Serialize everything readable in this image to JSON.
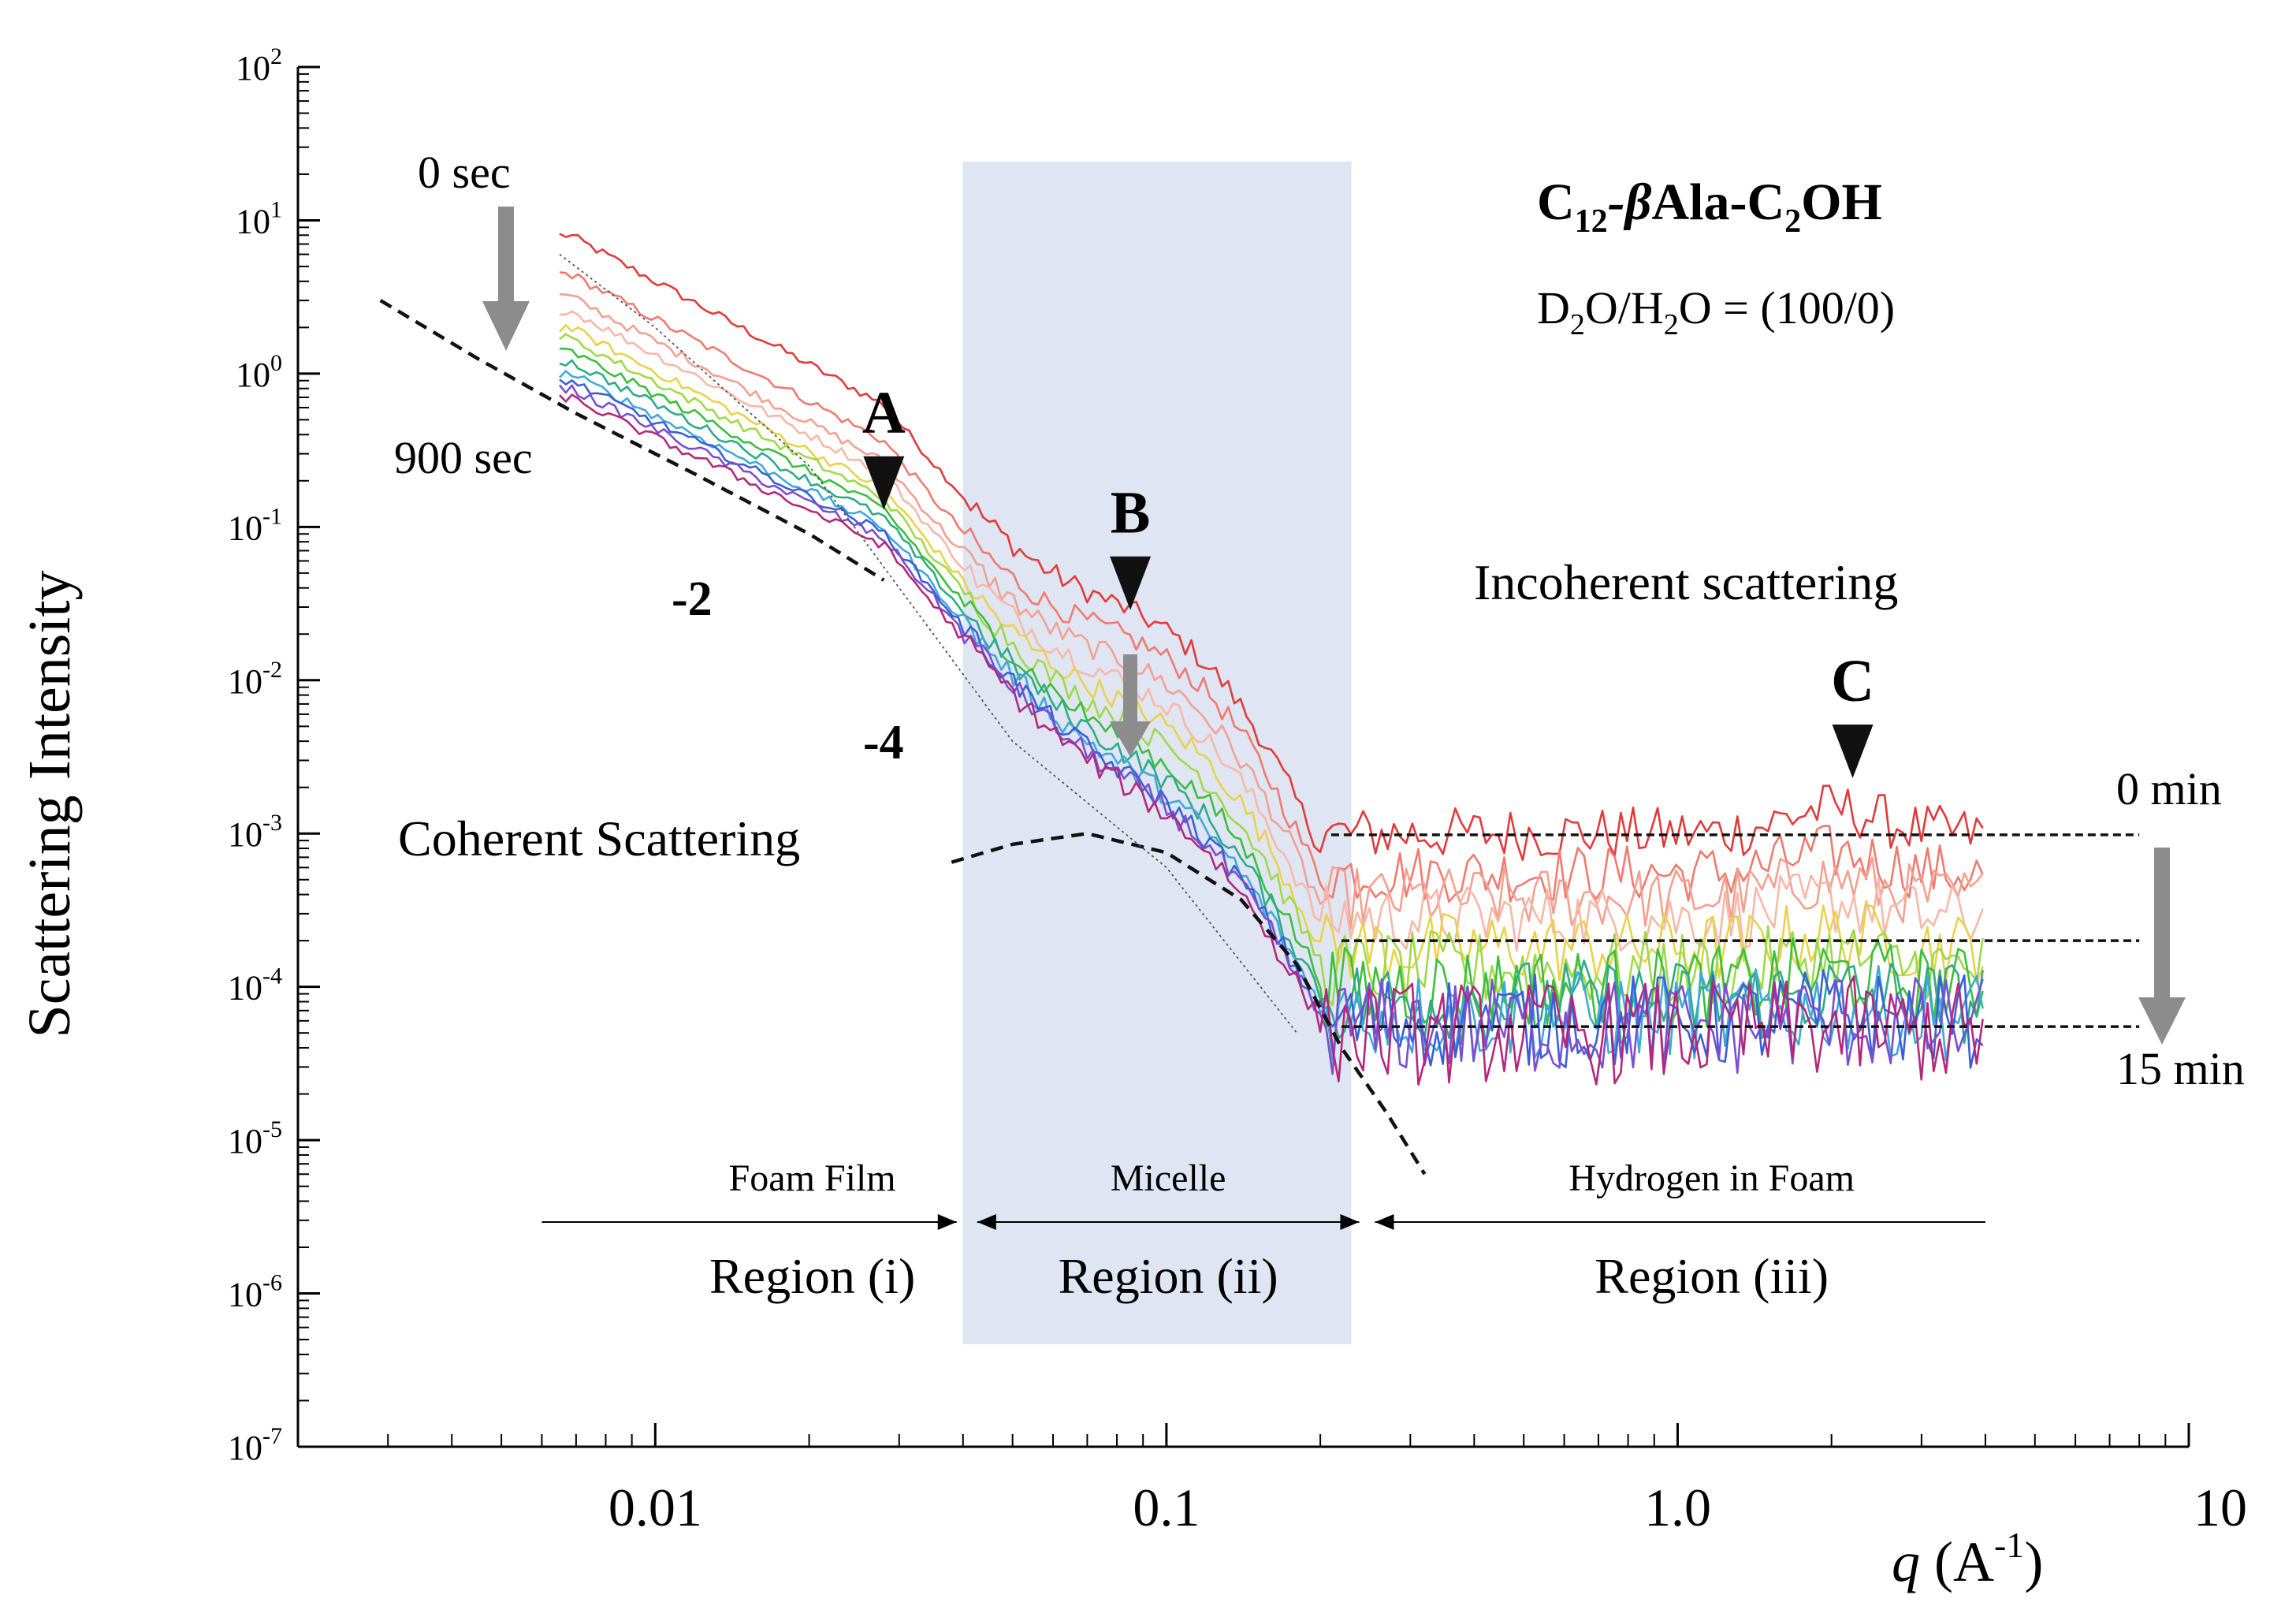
{
  "chart_data": {
    "type": "line",
    "x_scale": "log",
    "y_scale": "log",
    "xlim": [
      0.002,
      10
    ],
    "ylim": [
      1e-07,
      100
    ],
    "xlabel": "q",
    "xlabel_unit": "(A",
    "xlabel_unit_exp": "-1",
    "xlabel_unit_close": ")",
    "ylabel": "Scattering Intensity",
    "x_ticks": [
      {
        "value": 0.01,
        "label": "0.01"
      },
      {
        "value": 0.1,
        "label": "0.1"
      },
      {
        "value": 1.0,
        "label": "1.0"
      },
      {
        "value": 10,
        "label": "10"
      }
    ],
    "y_ticks": [
      {
        "exp": 2,
        "base": "10",
        "power": "2"
      },
      {
        "exp": 1,
        "base": "10",
        "power": "1"
      },
      {
        "exp": 0,
        "base": "10",
        "power": "0"
      },
      {
        "exp": -1,
        "base": "10",
        "power": "-1"
      },
      {
        "exp": -2,
        "base": "10",
        "power": "-2"
      },
      {
        "exp": -3,
        "base": "10",
        "power": "-3"
      },
      {
        "exp": -4,
        "base": "10",
        "power": "-4"
      },
      {
        "exp": -5,
        "base": "10",
        "power": "-5"
      },
      {
        "exp": -6,
        "base": "10",
        "power": "-6"
      },
      {
        "exp": -7,
        "base": "10",
        "power": "-7"
      }
    ],
    "title_parts": {
      "c": "C",
      "c_sub": "12",
      "beta": "-β",
      "mid": "Ala-C",
      "c2_sub": "2",
      "end": "OH"
    },
    "subtitle_parts": {
      "d": "D",
      "d_sub": "2",
      "mid": "O/H",
      "h_sub": "2",
      "end": "O = (100/0)"
    },
    "shaded_region": {
      "x_start": 0.04,
      "x_end": 0.23,
      "color": "#dfe5f2"
    },
    "regions": [
      {
        "label": "Region (i)",
        "description": "Foam Film",
        "x_from": 0.006,
        "x_to": 0.04
      },
      {
        "label": "Region (ii)",
        "description": "Micelle",
        "x_from": 0.04,
        "x_to": 0.23
      },
      {
        "label": "Region (iii)",
        "description": "Hydrogen in Foam",
        "x_from": 0.23,
        "x_to": 4.0
      }
    ],
    "markers": [
      {
        "label": "A",
        "x": 0.028,
        "y": 0.18
      },
      {
        "label": "B",
        "x": 0.085,
        "y": 0.04
      },
      {
        "label": "C",
        "x": 2.2,
        "y": 0.0032
      }
    ],
    "annotations": {
      "time_start_sec": "0 sec",
      "time_end_sec": "900 sec",
      "time_start_min": "0 min",
      "time_end_min": "15 min",
      "slope_2": "-2",
      "slope_4": "-4",
      "coherent": "Coherent Scattering",
      "incoherent": "Incoherent scattering"
    },
    "reference_lines": [
      {
        "name": "incoherent-level-0min",
        "x_range": [
          0.21,
          8
        ],
        "y": 0.00098
      },
      {
        "name": "incoherent-level-mid",
        "x_range": [
          0.22,
          8
        ],
        "y": 0.0002
      },
      {
        "name": "incoherent-level-15min",
        "x_range": [
          0.22,
          8
        ],
        "y": 5.5e-05
      }
    ],
    "fit_curves": [
      {
        "name": "q-2-fit",
        "points": [
          [
            0.0029,
            3
          ],
          [
            0.0045,
            1.25
          ],
          [
            0.007,
            0.55
          ],
          [
            0.012,
            0.22
          ],
          [
            0.02,
            0.09
          ],
          [
            0.028,
            0.045
          ]
        ]
      },
      {
        "name": "coherent-fit",
        "points": [
          [
            0.038,
            0.00065
          ],
          [
            0.05,
            0.00085
          ],
          [
            0.07,
            0.001
          ],
          [
            0.1,
            0.00075
          ],
          [
            0.14,
            0.00037
          ],
          [
            0.18,
            0.00014
          ],
          [
            0.22,
            4e-05
          ],
          [
            0.27,
            1.5e-05
          ],
          [
            0.32,
            6e-06
          ]
        ]
      },
      {
        "name": "guide-line",
        "points": [
          [
            0.0065,
            6
          ],
          [
            0.01,
            2
          ],
          [
            0.02,
            0.25
          ],
          [
            0.05,
            0.004
          ],
          [
            0.1,
            0.0006
          ],
          [
            0.18,
            5e-05
          ]
        ]
      }
    ],
    "series": [
      {
        "name": "0 sec",
        "color": "#e23a3a",
        "i0": 8,
        "plateau": 0.022,
        "level": 0.001,
        "peak": 0.00045
      },
      {
        "name": "t2",
        "color": "#f07a6e",
        "i0": 4.5,
        "plateau": 0.015,
        "level": 0.00055,
        "peak": 0.0002
      },
      {
        "name": "t3",
        "color": "#f4a090",
        "i0": 3.2,
        "plateau": 0.01,
        "level": 0.00038,
        "peak": 0.00012
      },
      {
        "name": "t4",
        "color": "#f8b8a8",
        "i0": 2.6,
        "plateau": 0.007,
        "level": 0.00028,
        "peak": 8e-05
      },
      {
        "name": "t5",
        "color": "#e9d24a",
        "i0": 2.0,
        "plateau": 0.005,
        "level": 0.00018,
        "peak": 4e-05
      },
      {
        "name": "t6",
        "color": "#9fd94a",
        "i0": 1.7,
        "plateau": 0.0035,
        "level": 0.00013,
        "peak": 3e-05
      },
      {
        "name": "t7",
        "color": "#3cbf3c",
        "i0": 1.4,
        "plateau": 0.0025,
        "level": 0.0001,
        "peak": 2e-05
      },
      {
        "name": "t8",
        "color": "#2eaa88",
        "i0": 1.2,
        "plateau": 0.0019,
        "level": 8e-05,
        "peak": 1e-05
      },
      {
        "name": "t9",
        "color": "#3fa9d9",
        "i0": 1.0,
        "plateau": 0.0015,
        "level": 6.5e-05,
        "peak": 8e-06
      },
      {
        "name": "t10",
        "color": "#3a5fd9",
        "i0": 0.9,
        "plateau": 0.0013,
        "level": 6e-05,
        "peak": 6e-06
      },
      {
        "name": "t11",
        "color": "#7a4fd0",
        "i0": 0.8,
        "plateau": 0.0012,
        "level": 5.5e-05,
        "peak": 5e-06
      },
      {
        "name": "900 sec",
        "color": "#b4277a",
        "i0": 0.7,
        "plateau": 0.0011,
        "level": 5e-05,
        "peak": 4e-06
      }
    ]
  }
}
